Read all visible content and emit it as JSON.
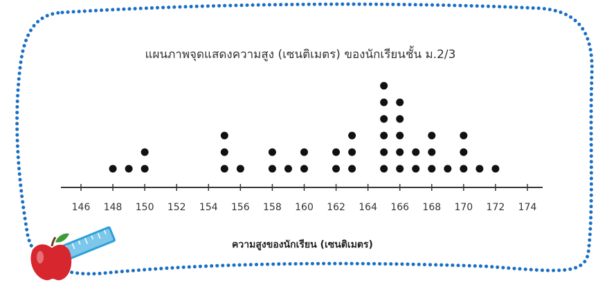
{
  "chart_data": {
    "type": "scatter",
    "subtype": "dot-plot",
    "title": "แผนภาพจุดแสดงความสูง (เซนติเมตร) ของนักเรียนชั้น ม.2/3",
    "xlabel": "ความสูงของนักเรียน (เซนติเมตร)",
    "ylabel": "",
    "xlim": [
      145,
      175
    ],
    "x_ticks": [
      146,
      148,
      150,
      152,
      154,
      156,
      158,
      160,
      162,
      164,
      166,
      168,
      170,
      172,
      174
    ],
    "x_tick_labels": [
      "146",
      "148",
      "150",
      "152",
      "154",
      "156",
      "158",
      "160",
      "162",
      "164",
      "166",
      "168",
      "170",
      "172",
      "174"
    ],
    "grid": false,
    "points": [
      {
        "x": 148,
        "count": 1
      },
      {
        "x": 149,
        "count": 1
      },
      {
        "x": 150,
        "count": 2
      },
      {
        "x": 155,
        "count": 3
      },
      {
        "x": 156,
        "count": 1
      },
      {
        "x": 158,
        "count": 2
      },
      {
        "x": 159,
        "count": 1
      },
      {
        "x": 160,
        "count": 2
      },
      {
        "x": 162,
        "count": 2
      },
      {
        "x": 163,
        "count": 3
      },
      {
        "x": 165,
        "count": 6
      },
      {
        "x": 166,
        "count": 5
      },
      {
        "x": 167,
        "count": 2
      },
      {
        "x": 168,
        "count": 3
      },
      {
        "x": 169,
        "count": 1
      },
      {
        "x": 170,
        "count": 3
      },
      {
        "x": 171,
        "count": 1
      },
      {
        "x": 172,
        "count": 1
      }
    ]
  },
  "colors": {
    "dot": "#111111",
    "axis": "#333333",
    "frame_dots": "#1a6fc4",
    "background": "#ffffff",
    "apple_red": "#d7262e",
    "apple_leaf": "#3f9a3a",
    "ruler": "#2f9fd8"
  },
  "icons": [
    "apple-icon",
    "ruler-icon"
  ]
}
